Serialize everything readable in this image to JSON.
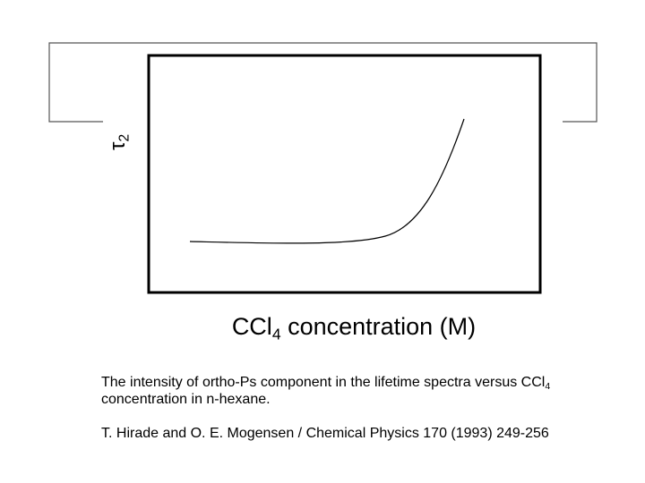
{
  "figure": {
    "y_label": {
      "symbol": "τ",
      "sub": "2"
    },
    "x_label": {
      "pre": "CCl",
      "sub": "4",
      "post": " concentration (M)"
    }
  },
  "caption": {
    "pre": "The intensity of ortho-Ps component in the lifetime spectra versus CCl",
    "sub": "4",
    "post": " concentration in n-hexane."
  },
  "citation": "T. Hirade and O. E. Mogensen / Chemical Physics 170 (1993) 249-256"
}
